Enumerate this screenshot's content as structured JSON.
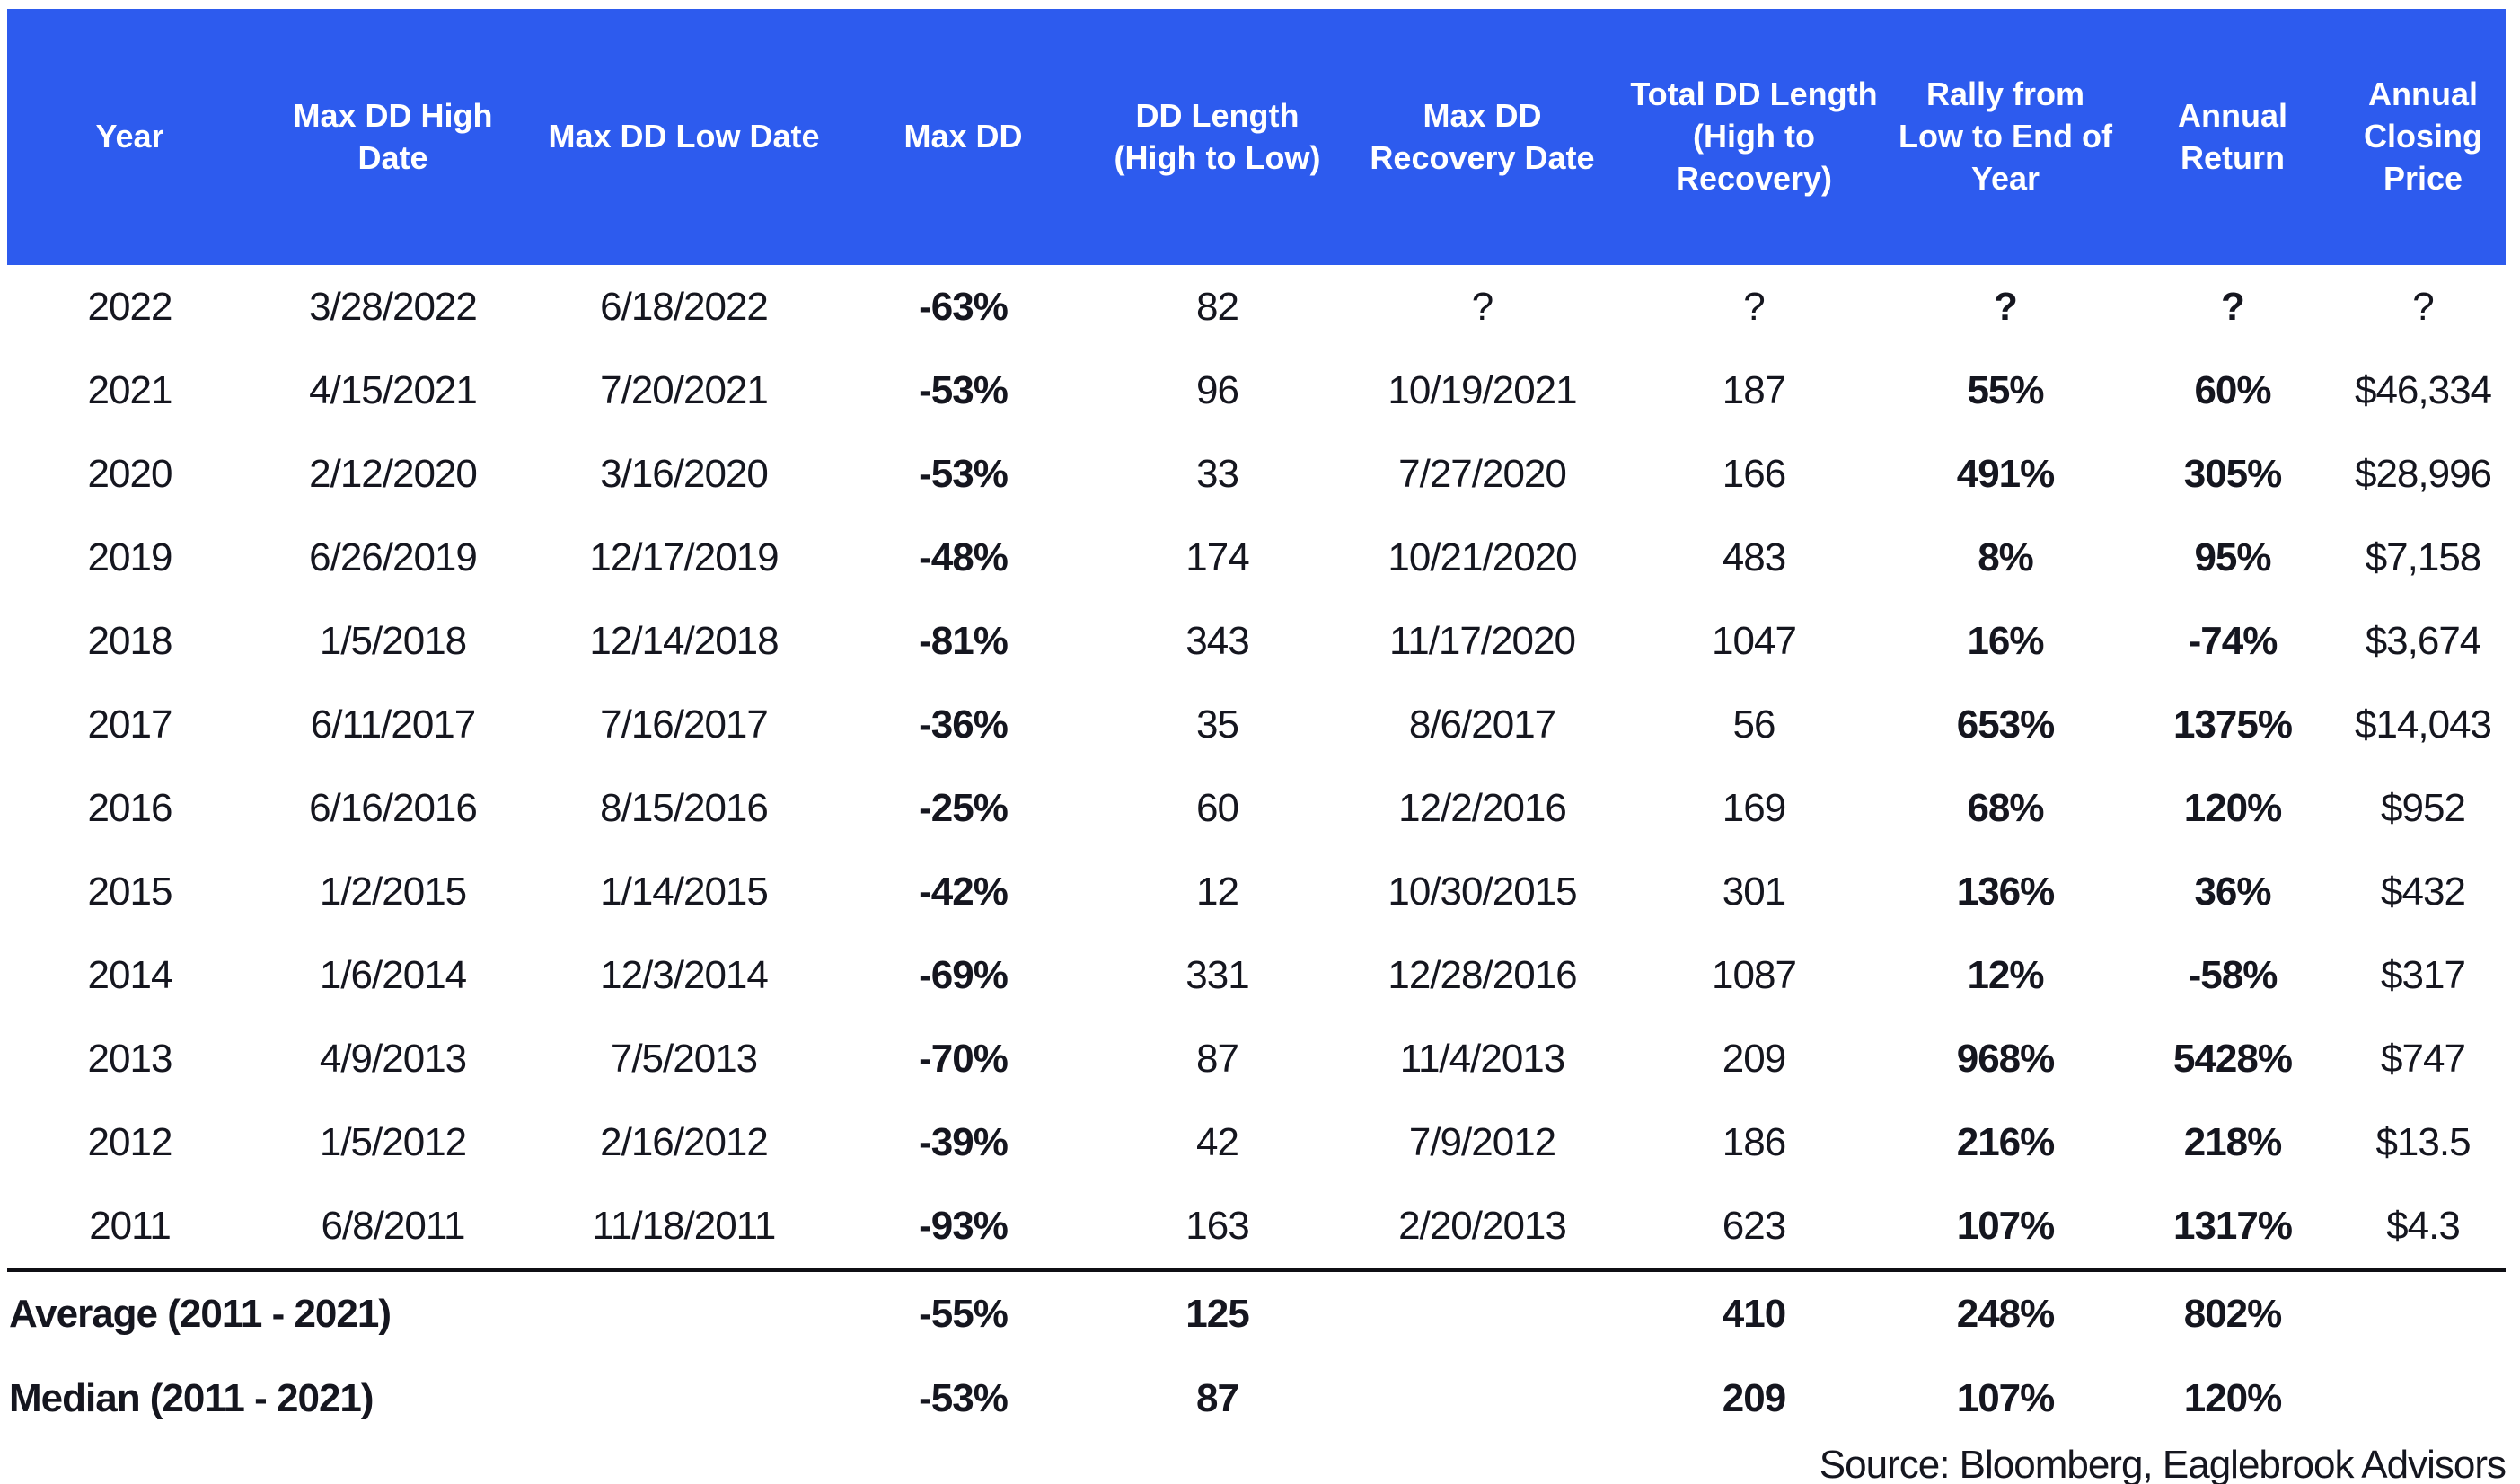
{
  "chart_data": {
    "type": "table",
    "columns": [
      "Year",
      "Max DD High Date",
      "Max DD Low Date",
      "Max DD",
      "DD Length (High to Low)",
      "Max DD Recovery Date",
      "Total DD Length (High to Recovery)",
      "Rally from Low to End of Year",
      "Annual Return",
      "Annual Closing Price"
    ],
    "rows": [
      [
        "2022",
        "3/28/2022",
        "6/18/2022",
        "-63%",
        "82",
        "?",
        "?",
        "?",
        "?",
        "?"
      ],
      [
        "2021",
        "4/15/2021",
        "7/20/2021",
        "-53%",
        "96",
        "10/19/2021",
        "187",
        "55%",
        "60%",
        "$46,334"
      ],
      [
        "2020",
        "2/12/2020",
        "3/16/2020",
        "-53%",
        "33",
        "7/27/2020",
        "166",
        "491%",
        "305%",
        "$28,996"
      ],
      [
        "2019",
        "6/26/2019",
        "12/17/2019",
        "-48%",
        "174",
        "10/21/2020",
        "483",
        "8%",
        "95%",
        "$7,158"
      ],
      [
        "2018",
        "1/5/2018",
        "12/14/2018",
        "-81%",
        "343",
        "11/17/2020",
        "1047",
        "16%",
        "-74%",
        "$3,674"
      ],
      [
        "2017",
        "6/11/2017",
        "7/16/2017",
        "-36%",
        "35",
        "8/6/2017",
        "56",
        "653%",
        "1375%",
        "$14,043"
      ],
      [
        "2016",
        "6/16/2016",
        "8/15/2016",
        "-25%",
        "60",
        "12/2/2016",
        "169",
        "68%",
        "120%",
        "$952"
      ],
      [
        "2015",
        "1/2/2015",
        "1/14/2015",
        "-42%",
        "12",
        "10/30/2015",
        "301",
        "136%",
        "36%",
        "$432"
      ],
      [
        "2014",
        "1/6/2014",
        "12/3/2014",
        "-69%",
        "331",
        "12/28/2016",
        "1087",
        "12%",
        "-58%",
        "$317"
      ],
      [
        "2013",
        "4/9/2013",
        "7/5/2013",
        "-70%",
        "87",
        "11/4/2013",
        "209",
        "968%",
        "5428%",
        "$747"
      ],
      [
        "2012",
        "1/5/2012",
        "2/16/2012",
        "-39%",
        "42",
        "7/9/2012",
        "186",
        "216%",
        "218%",
        "$13.5"
      ],
      [
        "2011",
        "6/8/2011",
        "11/18/2011",
        "-93%",
        "163",
        "2/20/2013",
        "623",
        "107%",
        "1317%",
        "$4.3"
      ]
    ],
    "summary_rows": [
      [
        "Average (2011 - 2021)",
        "",
        "",
        "-55%",
        "125",
        "",
        "410",
        "248%",
        "802%",
        ""
      ],
      [
        "Median (2011 - 2021)",
        "",
        "",
        "-53%",
        "87",
        "",
        "209",
        "107%",
        "120%",
        ""
      ]
    ],
    "source": "Source: Bloomberg, Eaglebrook Advisors",
    "colors": {
      "header_background": "#2d5bee",
      "header_text": "#ffffff",
      "body_text": "#15161f"
    },
    "layout_hints": {
      "grid": "none",
      "bold_columns": [
        "Max DD",
        "Rally from Low to End of Year",
        "Annual Return"
      ],
      "summary_divider": "thick black line above Average row"
    }
  }
}
